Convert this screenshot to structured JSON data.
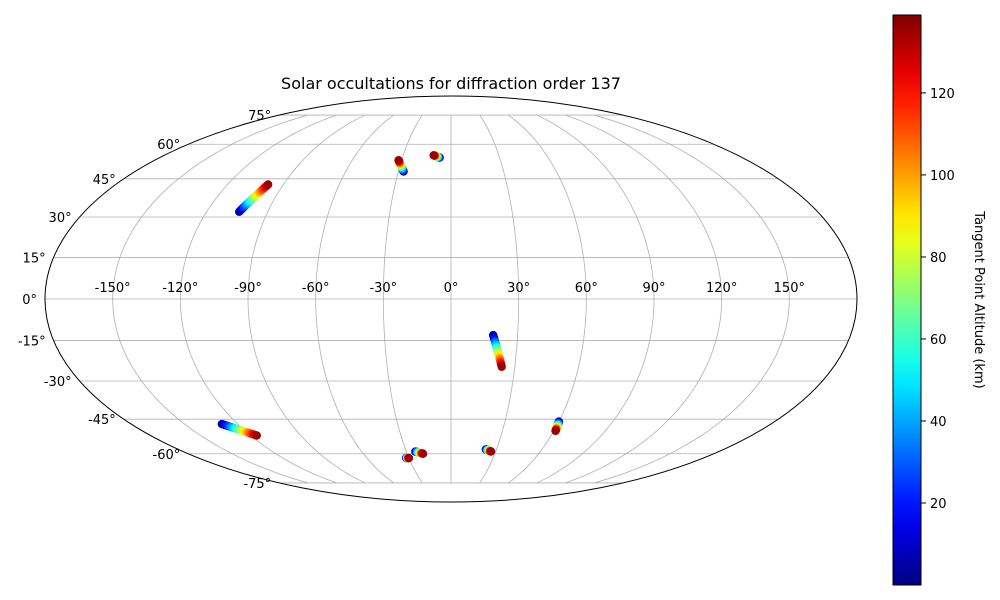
{
  "chart_data": {
    "type": "scatter",
    "title": "Solar occultations for diffraction order 137",
    "projection": "mollweide",
    "grid": true,
    "lon_ticks": [
      -150,
      -120,
      -90,
      -60,
      -30,
      0,
      30,
      60,
      90,
      120,
      150
    ],
    "lon_tick_labels": [
      "-150°",
      "-120°",
      "-90°",
      "-60°",
      "-30°",
      "0°",
      "30°",
      "60°",
      "90°",
      "120°",
      "150°"
    ],
    "lat_ticks": [
      75,
      60,
      45,
      30,
      15,
      0,
      -15,
      -30,
      -45,
      -60,
      -75
    ],
    "lat_tick_labels": [
      "75°",
      "60°",
      "45°",
      "30°",
      "15°",
      "0°",
      "-15°",
      "-30°",
      "-45°",
      "-60°",
      "-75°"
    ],
    "colorbar": {
      "label": "Tangent Point Altitude (km)",
      "colormap": "jet",
      "range": [
        0,
        139
      ],
      "ticks": [
        20,
        40,
        60,
        80,
        100,
        120
      ],
      "tick_labels": [
        "20",
        "40",
        "60",
        "80",
        "100",
        "120"
      ]
    },
    "series": [
      {
        "lon_low": -104,
        "lat_low": 32,
        "lon_high": -98,
        "lat_high": 43
      },
      {
        "lon_low": -27,
        "lat_low": 48,
        "lon_high": -32,
        "lat_high": 53
      },
      {
        "lon_low": -7,
        "lat_low": 54,
        "lon_high": -11,
        "lat_high": 55
      },
      {
        "lon_low": 19,
        "lat_low": -13,
        "lon_high": 24,
        "lat_high": -25
      },
      {
        "lon_low": -129,
        "lat_low": -47,
        "lon_high": -116,
        "lat_high": -52
      },
      {
        "lon_low": 60,
        "lat_low": -46,
        "lon_high": 61,
        "lat_high": -50
      },
      {
        "lon_low": -32,
        "lat_low": -62,
        "lon_high": -30,
        "lat_high": -62
      },
      {
        "lon_low": -24,
        "lat_low": -59,
        "lon_high": -19,
        "lat_high": -60
      },
      {
        "lon_low": 23,
        "lat_low": -58,
        "lon_high": 27,
        "lat_high": -59
      }
    ]
  }
}
